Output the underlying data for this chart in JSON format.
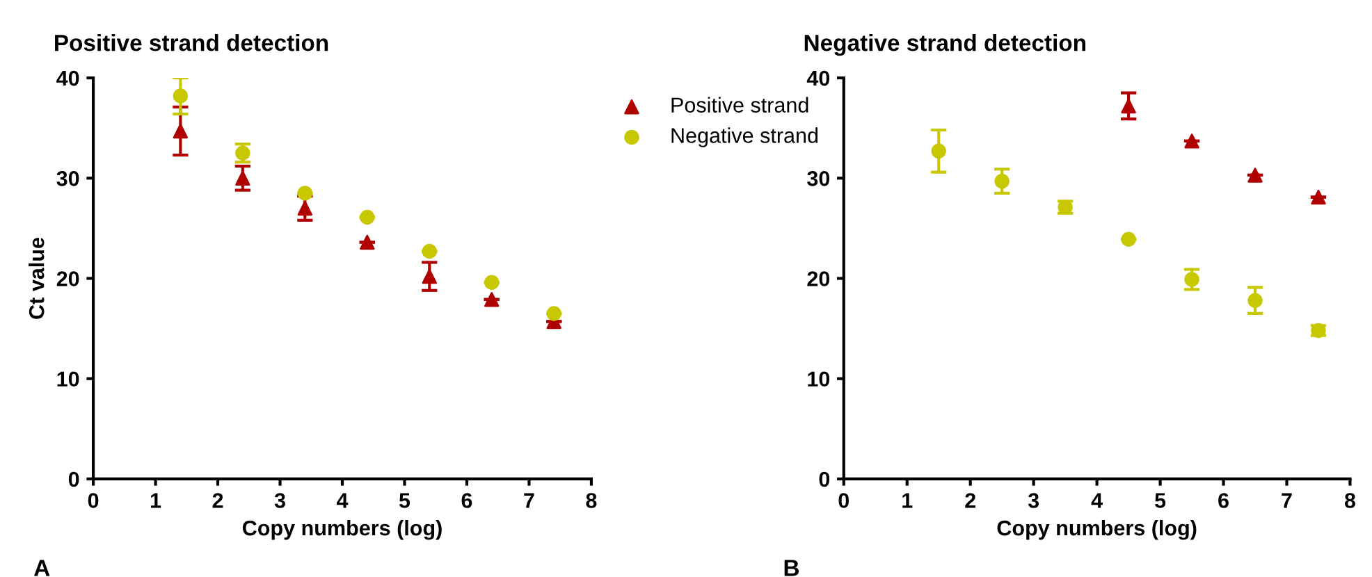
{
  "chart_data": [
    {
      "type": "scatter",
      "title": "Positive strand detection",
      "xlabel": "Copy numbers (log)",
      "ylabel": "Ct value",
      "xlim": [
        0,
        8
      ],
      "xticks": [
        0,
        1,
        2,
        3,
        4,
        5,
        6,
        7,
        8
      ],
      "ylim": [
        0,
        40
      ],
      "yticks": [
        0,
        10,
        20,
        30,
        40
      ],
      "legend": "top right",
      "grid": false,
      "annotations": [
        "A"
      ],
      "series": [
        {
          "name": "Positive strand",
          "color": "#b00000",
          "marker": "triangle",
          "x": [
            1.4,
            2.4,
            3.4,
            4.4,
            5.4,
            6.4,
            7.4
          ],
          "values": [
            34.7,
            30.0,
            27.0,
            23.6,
            20.2,
            17.9,
            15.7
          ],
          "errors": [
            2.4,
            1.2,
            1.2,
            null,
            1.4,
            null,
            null
          ]
        },
        {
          "name": "Negative strand",
          "color": "#c8c800",
          "marker": "circle",
          "x": [
            1.4,
            2.4,
            3.4,
            4.4,
            5.4,
            6.4,
            7.4
          ],
          "values": [
            38.2,
            32.5,
            28.5,
            26.1,
            22.7,
            19.6,
            16.5
          ],
          "errors": [
            1.8,
            0.9,
            null,
            null,
            null,
            null,
            null
          ]
        }
      ]
    },
    {
      "type": "scatter",
      "title": "Negative strand detection",
      "xlabel": "Copy numbers (log)",
      "xlim": [
        0,
        8
      ],
      "xticks": [
        0,
        1,
        2,
        3,
        4,
        5,
        6,
        7,
        8
      ],
      "ylim": [
        0,
        40
      ],
      "yticks": [
        0,
        10,
        20,
        30,
        40
      ],
      "grid": false,
      "annotations": [
        "B"
      ],
      "series": [
        {
          "color": "#b00000",
          "marker": "triangle",
          "x": [
            4.5,
            5.5,
            6.5,
            7.5
          ],
          "values": [
            37.2,
            33.7,
            30.3,
            28.1
          ],
          "errors": [
            1.3,
            null,
            null,
            null
          ]
        },
        {
          "color": "#c8c800",
          "marker": "circle",
          "x": [
            1.5,
            2.5,
            3.5,
            4.5,
            5.5,
            6.5,
            7.5
          ],
          "values": [
            32.7,
            29.7,
            27.1,
            23.9,
            19.9,
            17.8,
            14.8
          ],
          "errors": [
            2.1,
            1.2,
            0.6,
            null,
            1.0,
            1.3,
            0.5
          ]
        }
      ]
    }
  ]
}
